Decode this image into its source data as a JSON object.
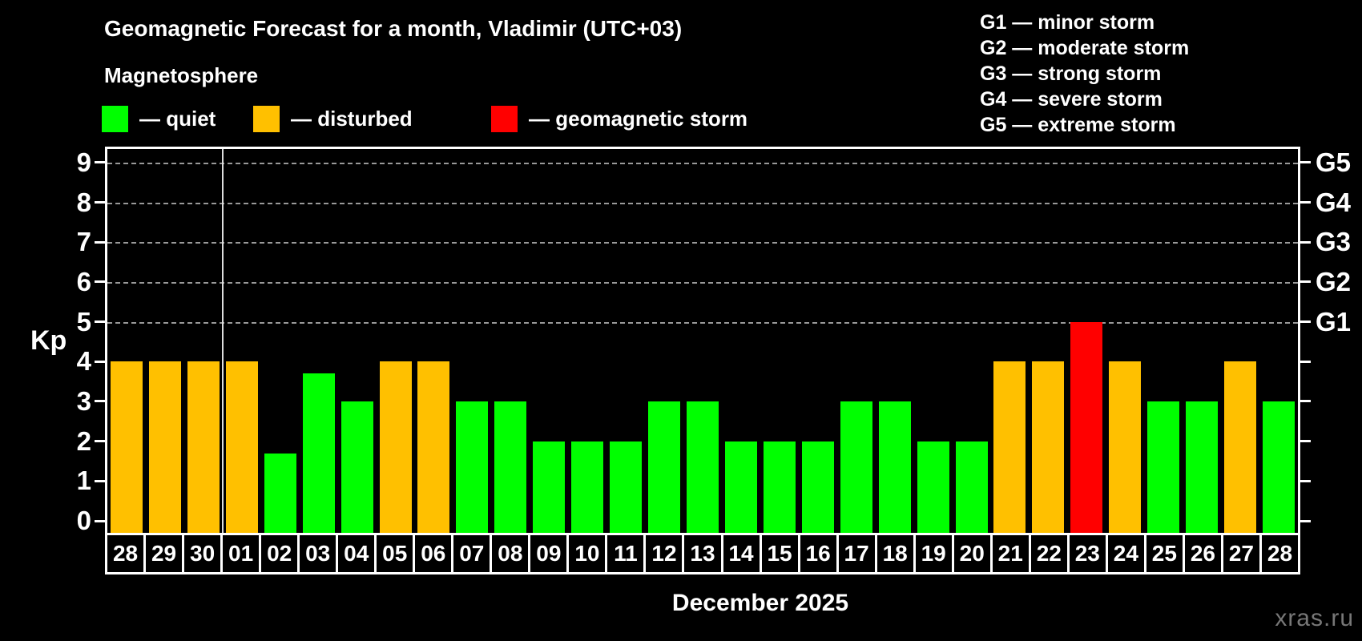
{
  "title": "Geomagnetic Forecast for a month, Vladimir (UTC+03)",
  "subtitle": "Magnetosphere",
  "status_colors": {
    "quiet": "#00ff00",
    "disturbed": "#ffc000",
    "storm": "#ff0000"
  },
  "legend": [
    {
      "status": "quiet",
      "label": "— quiet"
    },
    {
      "status": "disturbed",
      "label": "— disturbed"
    },
    {
      "status": "storm",
      "label": "— geomagnetic storm"
    }
  ],
  "g_legend": [
    "G1 — minor storm",
    "G2 — moderate storm",
    "G3 — strong storm",
    "G4 — severe storm",
    "G5 — extreme storm"
  ],
  "axis": {
    "kp_label": "Kp"
  },
  "footer": {
    "month_label": "December 2025",
    "watermark": "xras.ru"
  },
  "chart_data": {
    "type": "bar",
    "title": "Geomagnetic Forecast for a month, Vladimir (UTC+03)",
    "xlabel": "December 2025",
    "ylabel": "Kp",
    "categories": [
      "28",
      "29",
      "30",
      "01",
      "02",
      "03",
      "04",
      "05",
      "06",
      "07",
      "08",
      "09",
      "10",
      "11",
      "12",
      "13",
      "14",
      "15",
      "16",
      "17",
      "18",
      "19",
      "20",
      "21",
      "22",
      "23",
      "24",
      "25",
      "26",
      "27",
      "28"
    ],
    "values": [
      4,
      4,
      4,
      4,
      1.7,
      3.7,
      3,
      4,
      4,
      3,
      3,
      2,
      2,
      2,
      3,
      3,
      2,
      2,
      2,
      3,
      3,
      2,
      2,
      4,
      4,
      5,
      4,
      3,
      3,
      4,
      3
    ],
    "statuses": [
      "disturbed",
      "disturbed",
      "disturbed",
      "disturbed",
      "quiet",
      "quiet",
      "quiet",
      "disturbed",
      "disturbed",
      "quiet",
      "quiet",
      "quiet",
      "quiet",
      "quiet",
      "quiet",
      "quiet",
      "quiet",
      "quiet",
      "quiet",
      "quiet",
      "quiet",
      "quiet",
      "quiet",
      "disturbed",
      "disturbed",
      "storm",
      "disturbed",
      "quiet",
      "quiet",
      "disturbed",
      "quiet"
    ],
    "kp_ticks": [
      0,
      1,
      2,
      3,
      4,
      5,
      6,
      7,
      8,
      9
    ],
    "grid_levels": [
      5,
      6,
      7,
      8,
      9
    ],
    "right_axis": [
      {
        "kp": 5,
        "label": "G1"
      },
      {
        "kp": 6,
        "label": "G2"
      },
      {
        "kp": 7,
        "label": "G3"
      },
      {
        "kp": 8,
        "label": "G4"
      },
      {
        "kp": 9,
        "label": "G5"
      }
    ],
    "month_boundary_after_index": 2,
    "ylim": [
      -0.35,
      9.55
    ],
    "grid": true,
    "legend_position": "top-left"
  }
}
